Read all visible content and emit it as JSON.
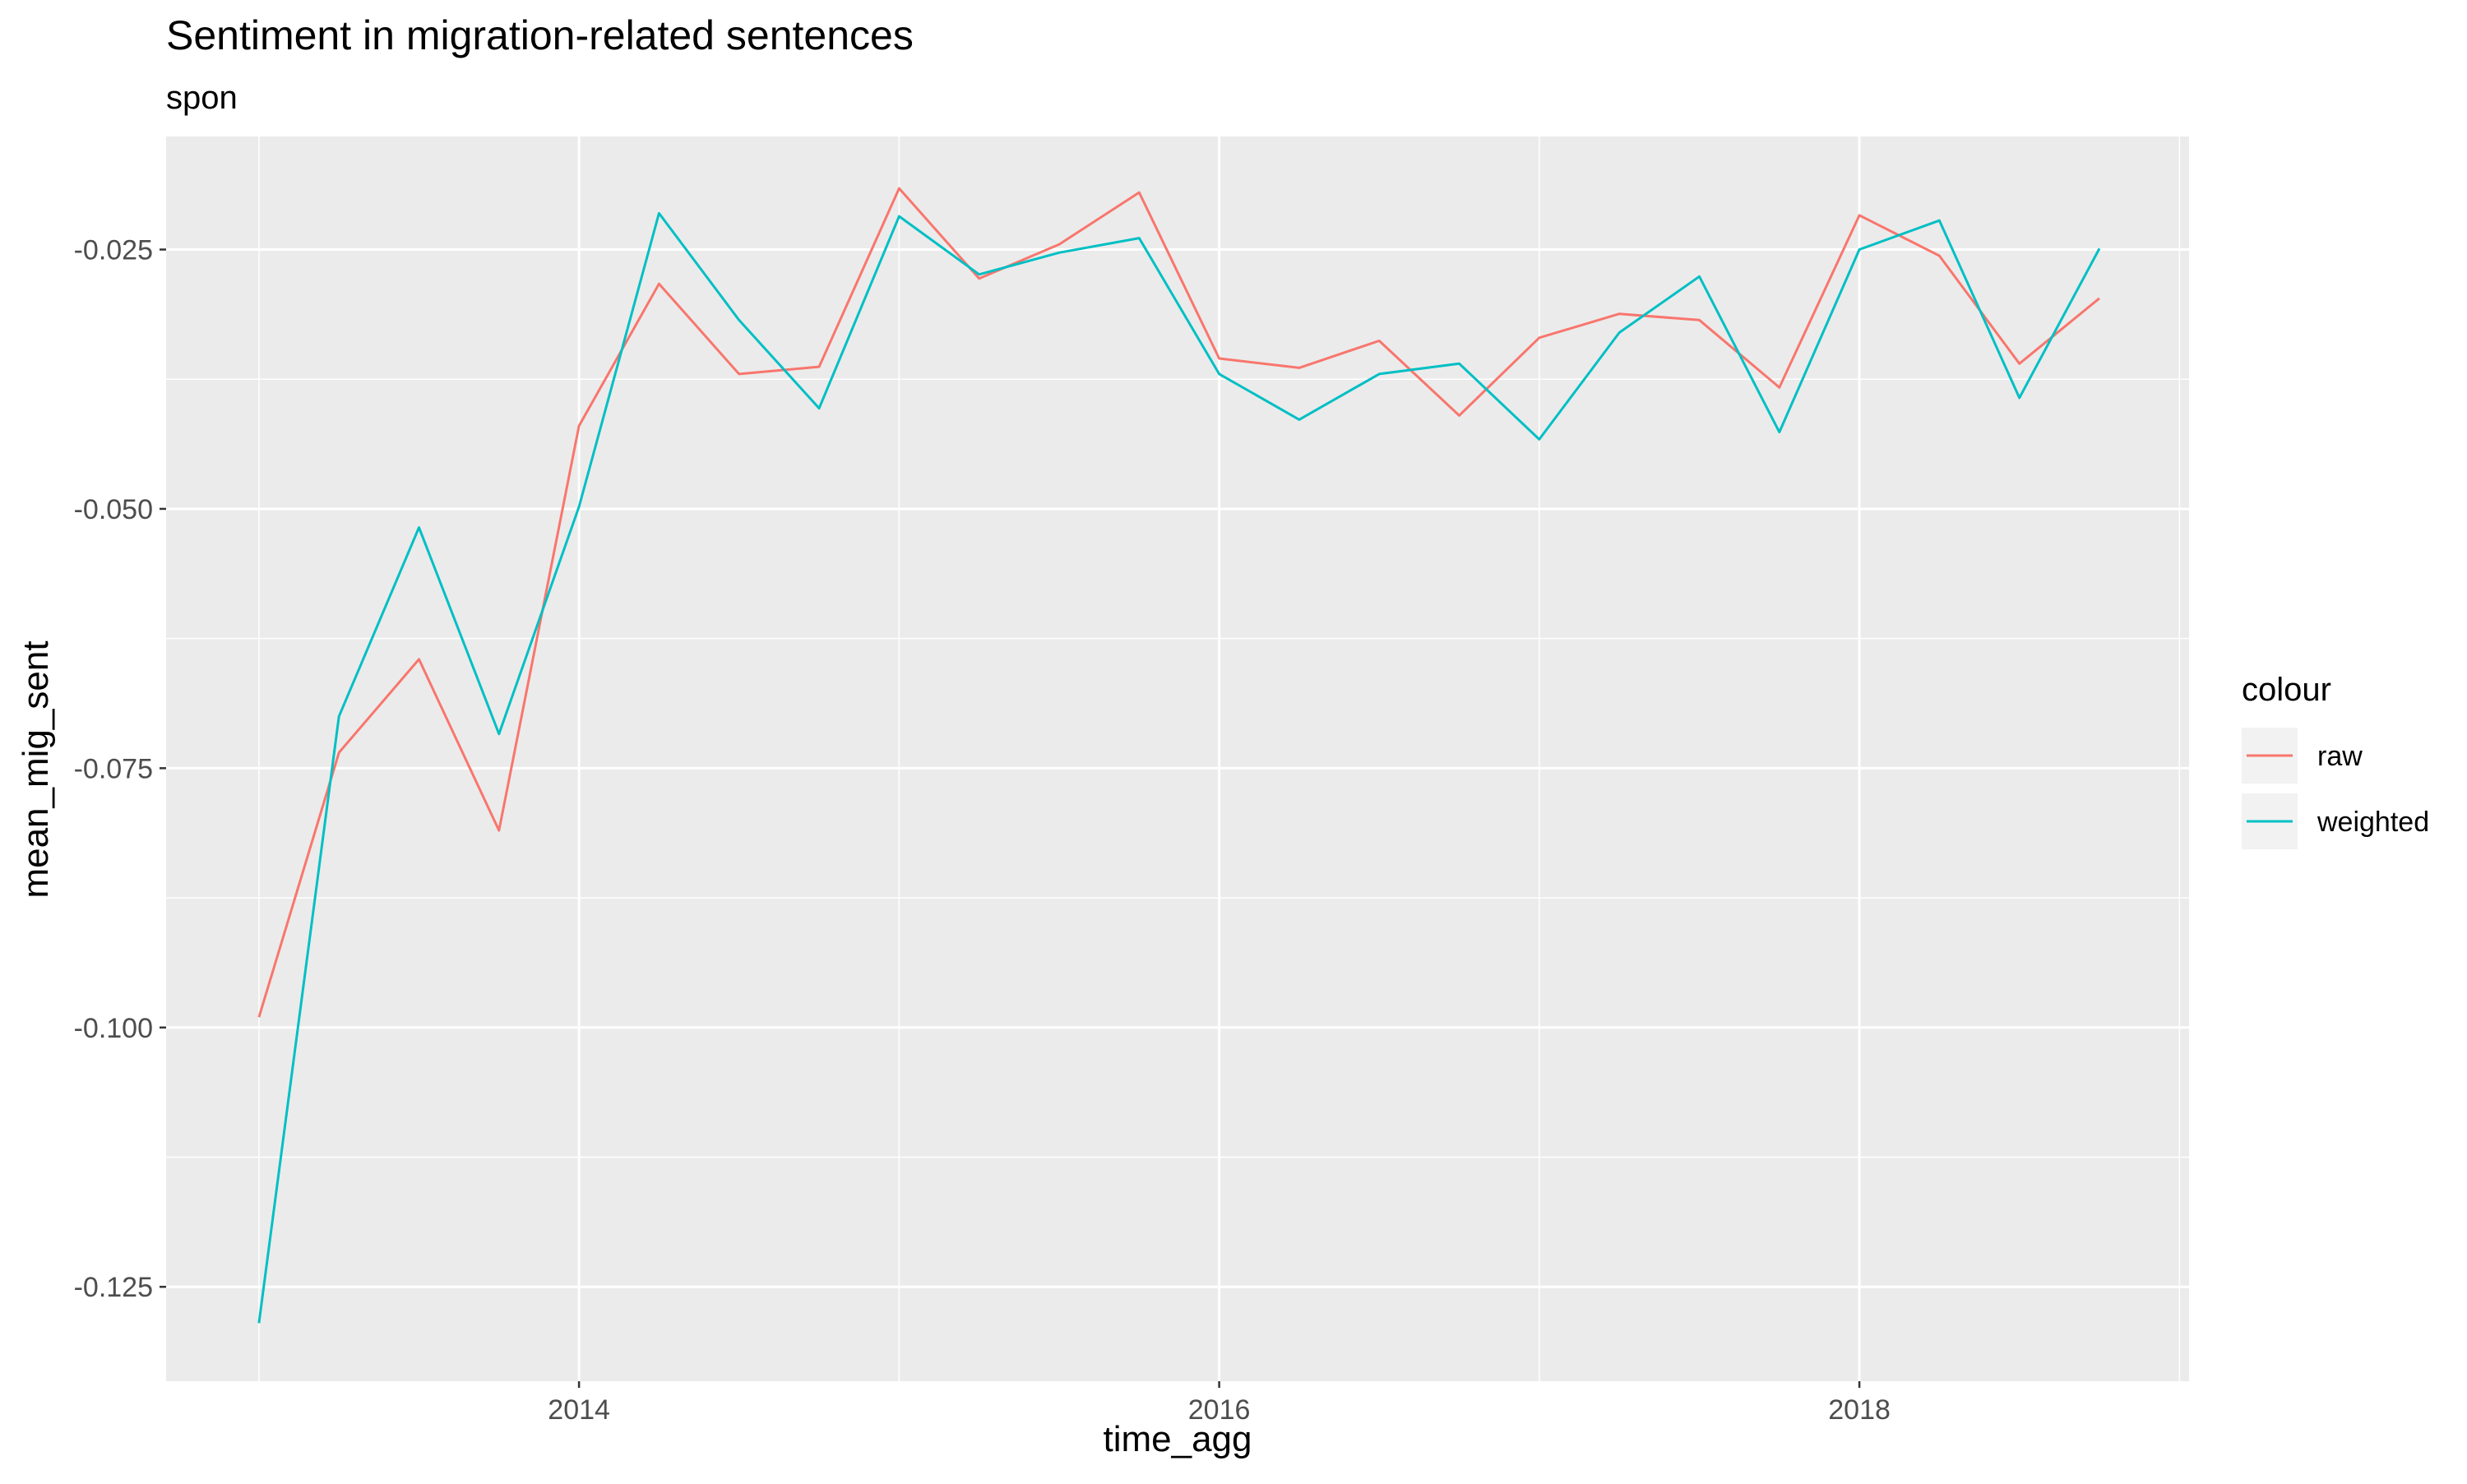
{
  "chart_data": {
    "type": "line",
    "title": "Sentiment in migration-related sentences",
    "subtitle": "spon",
    "xlabel": "time_agg",
    "ylabel": "mean_mig_sent",
    "legend_title": "colour",
    "legend_position": "right",
    "grid": true,
    "x_ticks": [
      {
        "value": 2014,
        "label": "2014"
      },
      {
        "value": 2016,
        "label": "2016"
      },
      {
        "value": 2018,
        "label": "2018"
      }
    ],
    "y_ticks": [
      {
        "value": -0.025,
        "label": "-0.025"
      },
      {
        "value": -0.05,
        "label": "-0.050"
      },
      {
        "value": -0.075,
        "label": "-0.075"
      },
      {
        "value": -0.1,
        "label": "-0.100"
      },
      {
        "value": -0.125,
        "label": "-0.125"
      }
    ],
    "xlim": [
      2012.71,
      2019.03
    ],
    "ylim": [
      -0.1341,
      -0.0141
    ],
    "x": [
      "2013-01",
      "2013-04",
      "2013-07",
      "2013-10",
      "2014-01",
      "2014-04",
      "2014-07",
      "2014-10",
      "2015-01",
      "2015-04",
      "2015-07",
      "2015-10",
      "2016-01",
      "2016-04",
      "2016-07",
      "2016-10",
      "2017-01",
      "2017-04",
      "2017-07",
      "2017-10",
      "2018-01",
      "2018-04",
      "2018-07",
      "2018-10"
    ],
    "series": [
      {
        "name": "raw",
        "color": "#F8766D",
        "values": [
          -0.099,
          -0.0735,
          -0.0645,
          -0.081,
          -0.042,
          -0.0283,
          -0.037,
          -0.0363,
          -0.0191,
          -0.0278,
          -0.0245,
          -0.0195,
          -0.0355,
          -0.0364,
          -0.0338,
          -0.041,
          -0.0335,
          -0.0312,
          -0.0318,
          -0.0383,
          -0.0217,
          -0.0256,
          -0.036,
          -0.0297
        ]
      },
      {
        "name": "weighted",
        "color": "#00BFC4",
        "values": [
          -0.1285,
          -0.07,
          -0.0518,
          -0.0717,
          -0.0498,
          -0.0215,
          -0.0318,
          -0.0403,
          -0.0218,
          -0.0274,
          -0.0253,
          -0.0239,
          -0.037,
          -0.0414,
          -0.037,
          -0.036,
          -0.0433,
          -0.033,
          -0.0276,
          -0.0426,
          -0.025,
          -0.0222,
          -0.0393,
          -0.0249
        ]
      }
    ]
  }
}
